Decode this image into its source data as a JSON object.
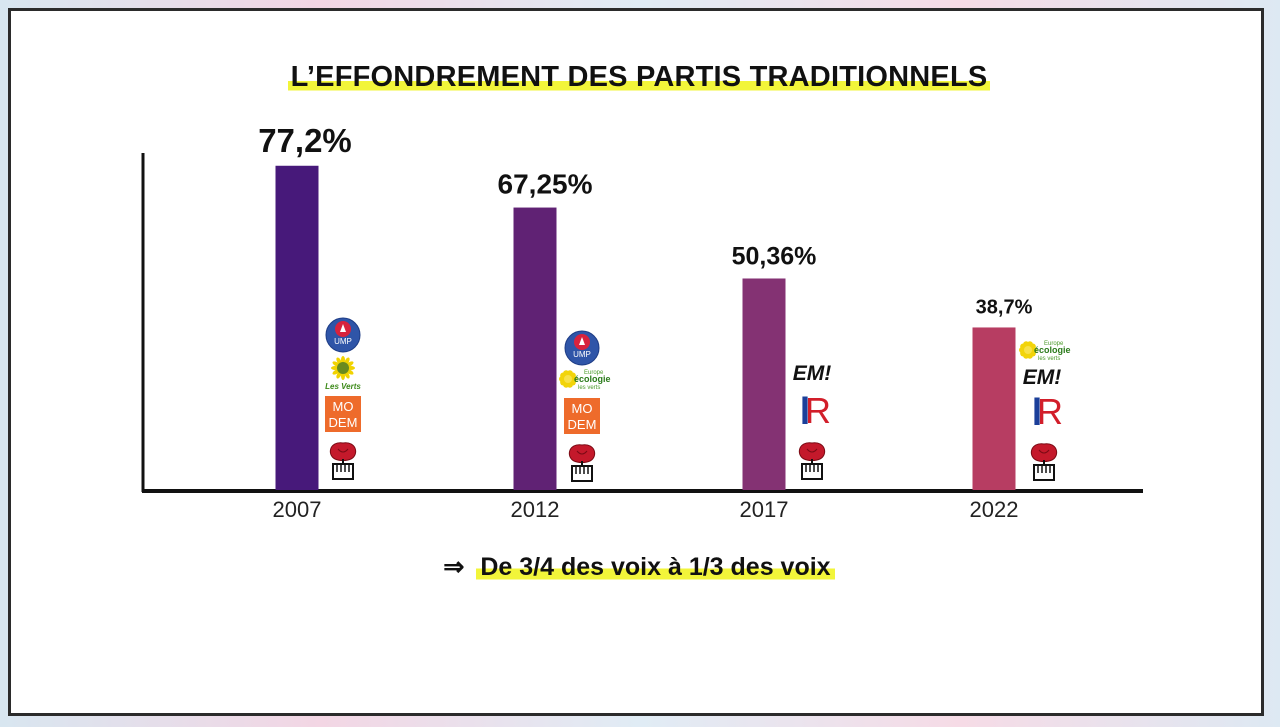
{
  "title": "L’EFFONDREMENT DES PARTIS TRADITIONNELS",
  "subtitle": {
    "arrow": "⇒",
    "text": "De 3/4 des voix à 1/3 des voix"
  },
  "colors": {
    "bars": [
      "#47197a",
      "#602274",
      "#843273",
      "#b73d62"
    ],
    "highlight": "#f2f53a"
  },
  "chart_data": {
    "type": "bar",
    "title": "L’EFFONDREMENT DES PARTIS TRADITIONNELS",
    "categories": [
      "2007",
      "2012",
      "2017",
      "2022"
    ],
    "values": [
      77.2,
      67.25,
      50.36,
      38.7
    ],
    "value_labels": [
      "77,2%",
      "67,25%",
      "50,36%",
      "38,7%"
    ],
    "xlabel": "",
    "ylabel": "",
    "ylim": [
      0,
      85
    ],
    "grid": false,
    "legend": "none",
    "party_logos": [
      [
        "UMP",
        "Les Verts",
        "MODEM",
        "PS"
      ],
      [
        "UMP",
        "Europe Écologie Les Verts",
        "MODEM",
        "PS"
      ],
      [
        "EM!",
        "LR",
        "PS"
      ],
      [
        "Europe Écologie Les Verts",
        "EM!",
        "LR",
        "PS"
      ]
    ]
  },
  "logo_text": {
    "ump": "UMP",
    "verts": "Les Verts",
    "eelv_top": "Europe",
    "eelv_mid": "écologie",
    "eelv_bot": "les verts",
    "modem_top": "MO",
    "modem_bot": "DEM",
    "em": "EM!",
    "lr_l": "l",
    "lr_r": "R"
  }
}
